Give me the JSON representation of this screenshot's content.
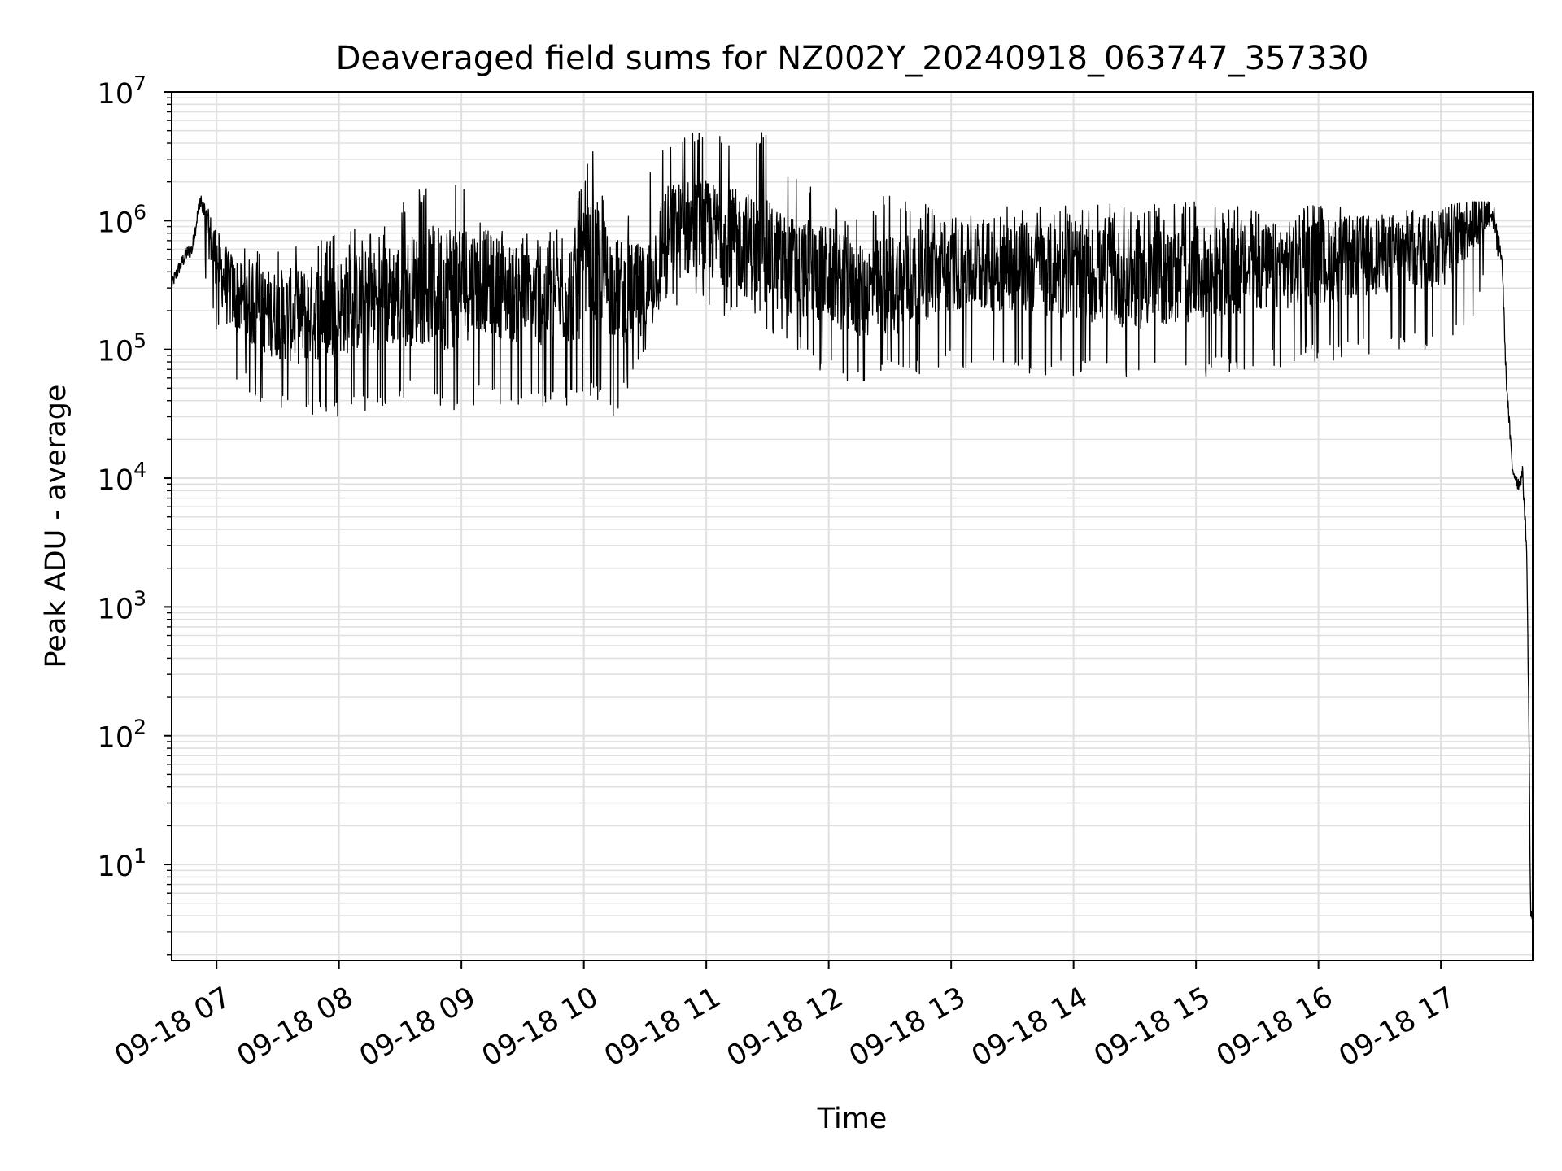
{
  "chart_data": {
    "type": "line",
    "title": "Deaveraged field sums for NZ002Y_20240918_063747_357330",
    "xlabel": "Time",
    "ylabel": "Peak ADU - average",
    "yscale": "log",
    "ylim": [
      1.8,
      10000000
    ],
    "xlim": [
      "2024-09-18 06:38",
      "2024-09-18 17:45"
    ],
    "grid": true,
    "legend": "none",
    "line_color": "#000000",
    "grid_color": "#e0e0e0",
    "x_ticks": [
      "09-18 07",
      "09-18 08",
      "09-18 09",
      "09-18 10",
      "09-18 11",
      "09-18 12",
      "09-18 13",
      "09-18 14",
      "09-18 15",
      "09-18 16",
      "09-18 17"
    ],
    "y_ticks": [
      {
        "base": "10",
        "exp": "1",
        "value": 10
      },
      {
        "base": "10",
        "exp": "2",
        "value": 100
      },
      {
        "base": "10",
        "exp": "3",
        "value": 1000
      },
      {
        "base": "10",
        "exp": "4",
        "value": 10000
      },
      {
        "base": "10",
        "exp": "5",
        "value": 100000
      },
      {
        "base": "10",
        "exp": "6",
        "value": 1000000
      },
      {
        "base": "10",
        "exp": "7",
        "value": 10000000
      }
    ],
    "series": [
      {
        "x": [
          "2024-09-18 06:38",
          "2024-09-18 06:45",
          "2024-09-18 06:48",
          "2024-09-18 06:52",
          "2024-09-18 06:55",
          "2024-09-18 07:05",
          "2024-09-18 07:20",
          "2024-09-18 07:40",
          "2024-09-18 08:00",
          "2024-09-18 08:20",
          "2024-09-18 08:40",
          "2024-09-18 08:55",
          "2024-09-18 09:10",
          "2024-09-18 09:30",
          "2024-09-18 09:50",
          "2024-09-18 10:05",
          "2024-09-18 10:15",
          "2024-09-18 10:30",
          "2024-09-18 10:40",
          "2024-09-18 10:55",
          "2024-09-18 11:10",
          "2024-09-18 11:25",
          "2024-09-18 11:40",
          "2024-09-18 12:00",
          "2024-09-18 12:15",
          "2024-09-18 12:30",
          "2024-09-18 13:00",
          "2024-09-18 13:30",
          "2024-09-18 14:00",
          "2024-09-18 14:30",
          "2024-09-18 15:00",
          "2024-09-18 15:30",
          "2024-09-18 16:00",
          "2024-09-18 16:30",
          "2024-09-18 17:00",
          "2024-09-18 17:15",
          "2024-09-18 17:25",
          "2024-09-18 17:30",
          "2024-09-18 17:32",
          "2024-09-18 17:35",
          "2024-09-18 17:38",
          "2024-09-18 17:40",
          "2024-09-18 17:42",
          "2024-09-18 17:43",
          "2024-09-18 17:44",
          "2024-09-18 17:45"
        ],
        "y": [
          320000,
          550000,
          600000,
          1500000,
          900000,
          300000,
          200000,
          180000,
          220000,
          250000,
          300000,
          320000,
          350000,
          250000,
          260000,
          450000,
          300000,
          250000,
          800000,
          900000,
          750000,
          600000,
          450000,
          380000,
          280000,
          320000,
          420000,
          450000,
          400000,
          350000,
          380000,
          420000,
          480000,
          550000,
          600000,
          1000000,
          1200000,
          500000,
          60000,
          12000,
          9000,
          11000,
          3000,
          200,
          4,
          4
        ],
        "y_low": [
          300000,
          500000,
          500000,
          700000,
          300000,
          60000,
          40000,
          30000,
          30000,
          35000,
          45000,
          30000,
          40000,
          35000,
          35000,
          40000,
          30000,
          90000,
          220000,
          200000,
          180000,
          150000,
          110000,
          60000,
          50000,
          60000,
          70000,
          65000,
          60000,
          55000,
          60000,
          70000,
          80000,
          90000,
          100000,
          150000,
          600000,
          300000,
          30000,
          7000,
          7000,
          6500,
          2000,
          100,
          3.8,
          3.8
        ],
        "y_high": [
          350000,
          650000,
          700000,
          1600000,
          1300000,
          700000,
          600000,
          700000,
          800000,
          1000000,
          1800000,
          2300000,
          1200000,
          800000,
          900000,
          3700000,
          800000,
          2700000,
          5000000,
          5300000,
          4500000,
          5500000,
          3000000,
          1500000,
          1000000,
          1800000,
          1100000,
          1300000,
          1300000,
          1400000,
          1400000,
          1300000,
          1400000,
          1200000,
          1300000,
          1400000,
          1400000,
          1300000,
          200000,
          19000,
          16000,
          19000,
          6000,
          700,
          5,
          5
        ]
      }
    ]
  }
}
